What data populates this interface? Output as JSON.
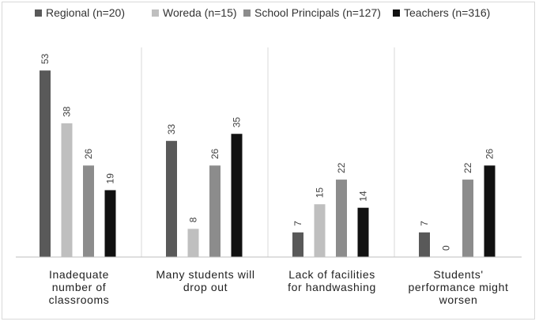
{
  "chart_data": {
    "type": "bar",
    "title": "",
    "xlabel": "",
    "ylabel": "",
    "ylim": [
      0,
      55
    ],
    "grid": false,
    "legend_position": "top",
    "categories": [
      "Inadequate number of classrooms",
      "Many students will drop out",
      "Lack of facilities for handwashing",
      "Students' performance might worsen"
    ],
    "category_lines": [
      [
        "Inadequate",
        "number of",
        "classrooms"
      ],
      [
        "Many students will",
        "drop out"
      ],
      [
        "Lack of facilities",
        "for handwashing"
      ],
      [
        "Students'",
        "performance might",
        "worsen"
      ]
    ],
    "series": [
      {
        "name": "Regional (n=20)",
        "color": "#595959",
        "values": [
          53,
          33,
          7,
          7
        ]
      },
      {
        "name": "Woreda (n=15)",
        "color": "#bfbfbf",
        "values": [
          38,
          8,
          15,
          0
        ]
      },
      {
        "name": "School Principals (n=127)",
        "color": "#8c8c8c",
        "values": [
          26,
          26,
          22,
          22
        ]
      },
      {
        "name": "Teachers (n=316)",
        "color": "#111111",
        "values": [
          19,
          35,
          14,
          26
        ]
      }
    ]
  }
}
